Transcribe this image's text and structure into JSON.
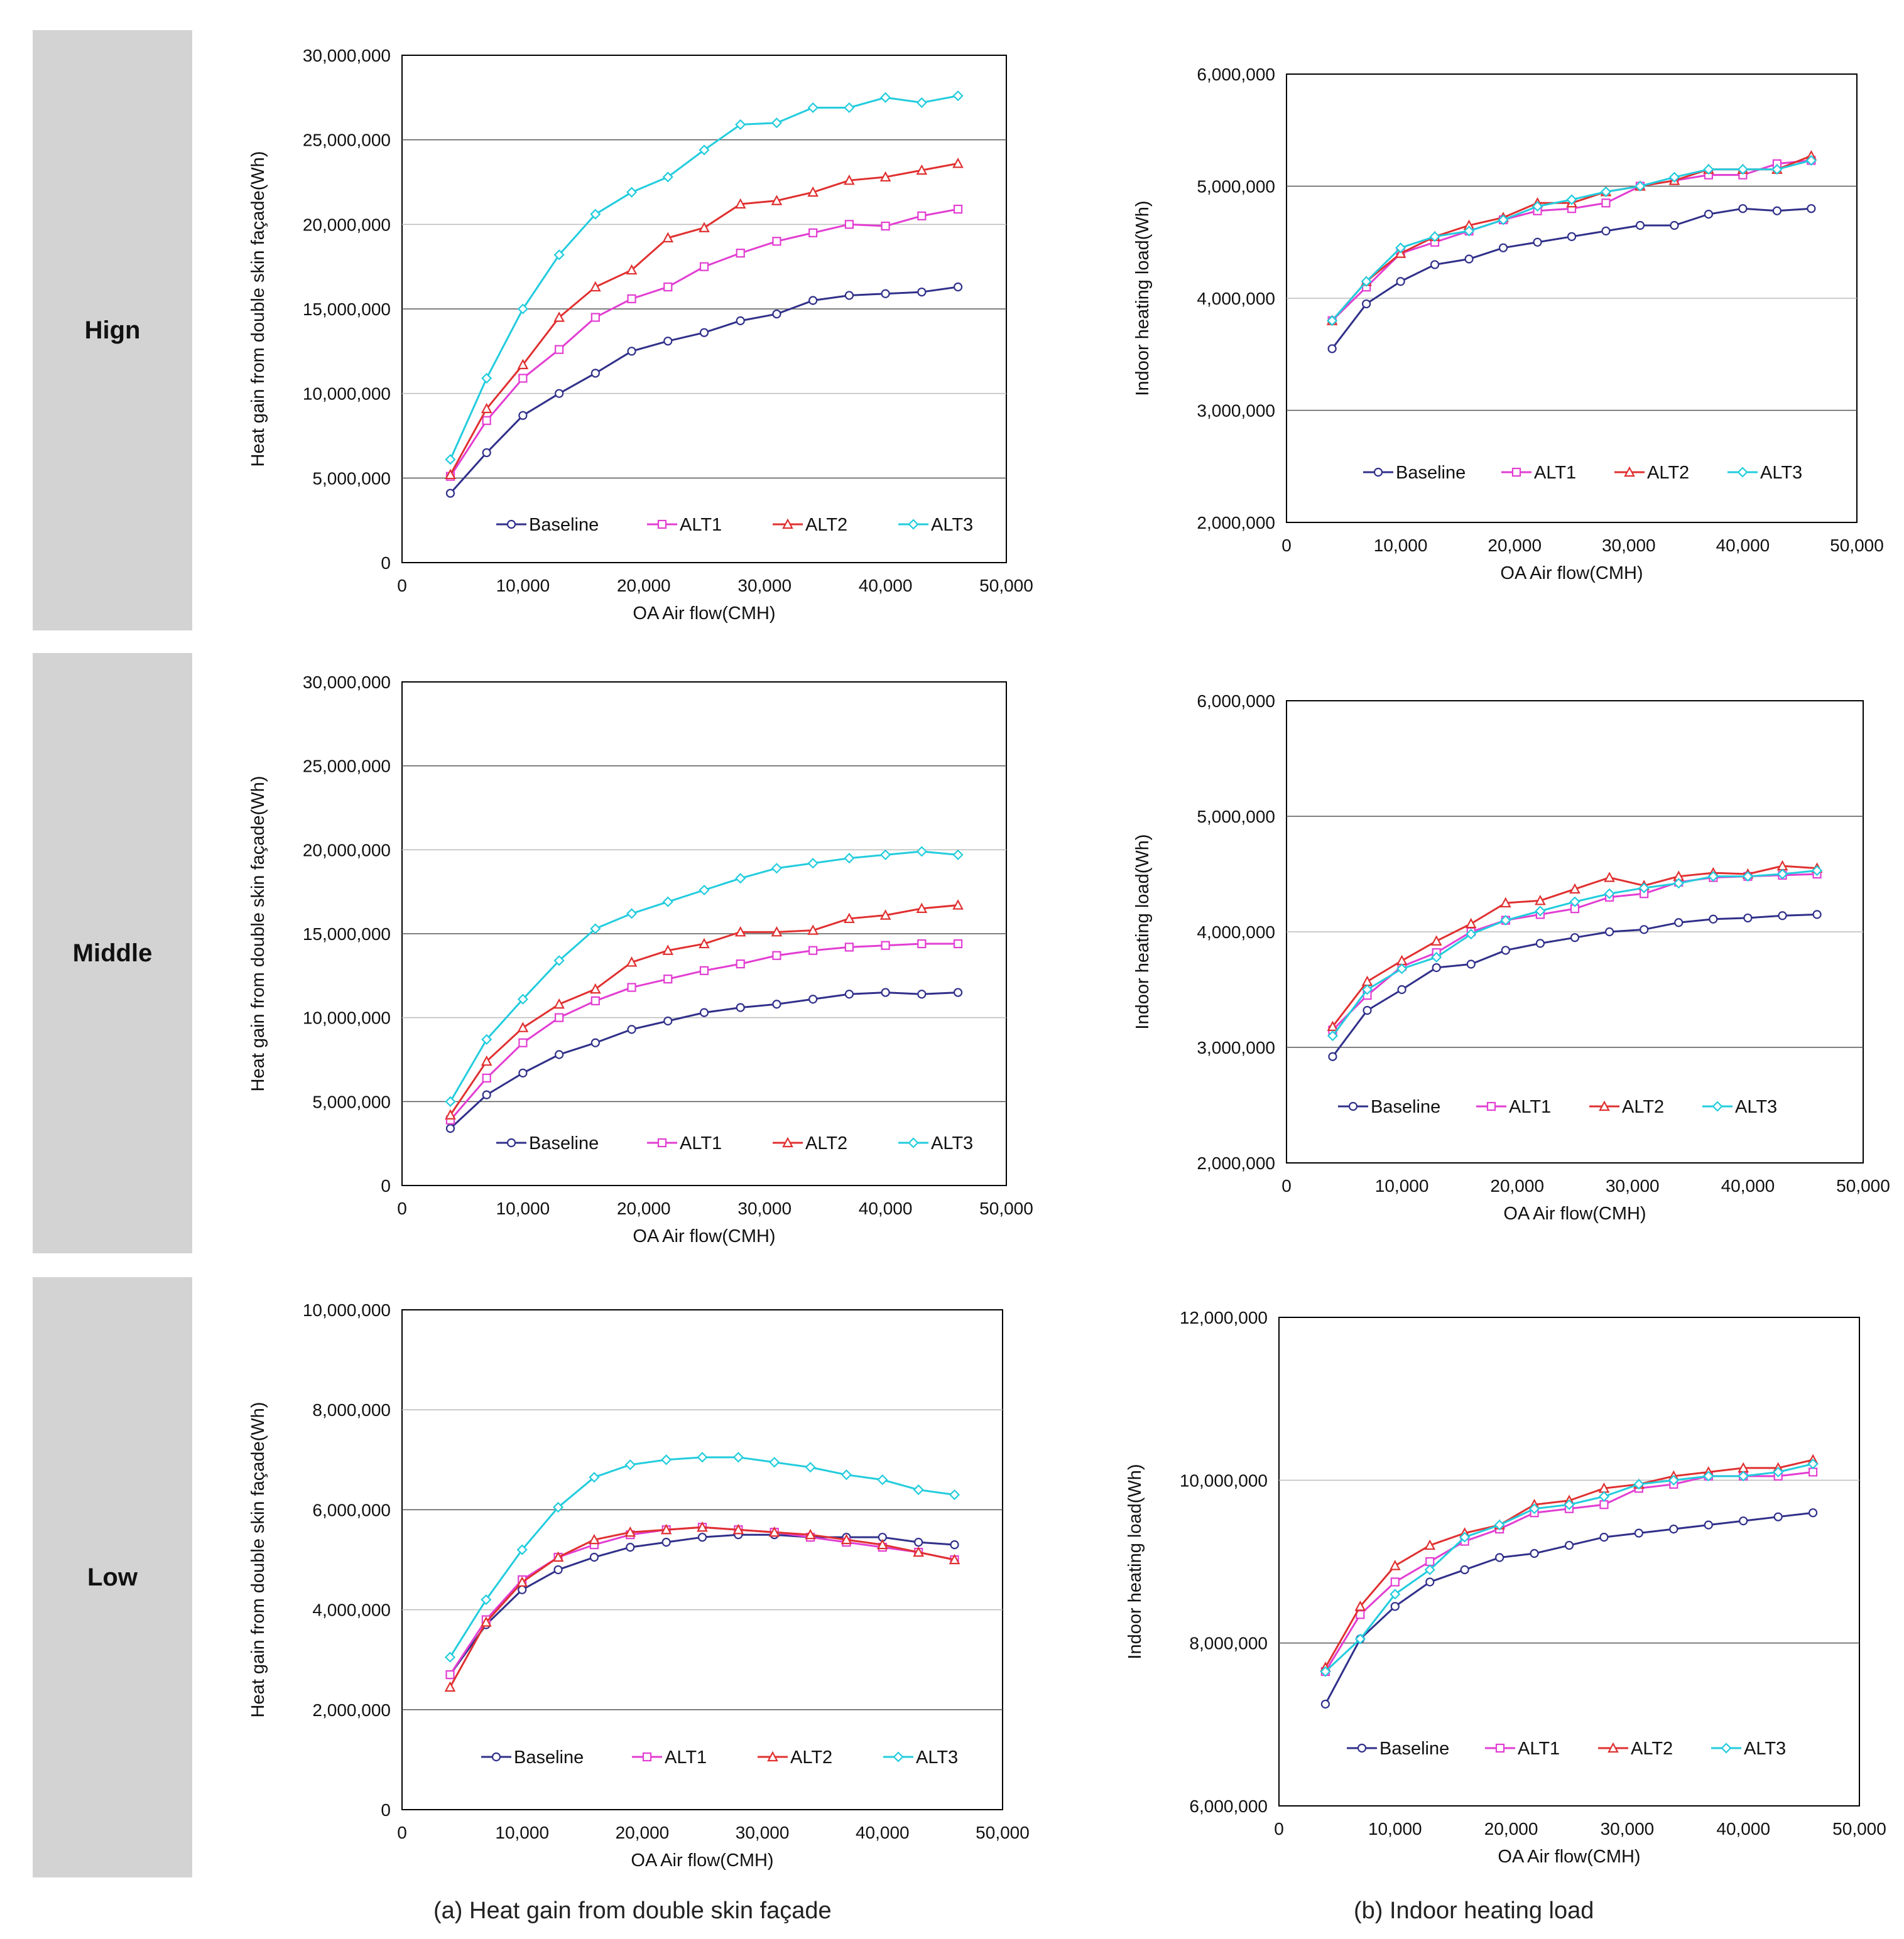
{
  "row_labels": [
    "Hign",
    "Middle",
    "Low"
  ],
  "captions": {
    "a": "(a) Heat gain from double skin façade",
    "b": "(b) Indoor heating load"
  },
  "colors": {
    "Baseline": "#30308a",
    "ALT1": "#e23ed2",
    "ALT2": "#e03030",
    "ALT3": "#22ccdd"
  },
  "x_values": [
    4000,
    7000,
    10000,
    13000,
    16000,
    19000,
    22000,
    25000,
    28000,
    31000,
    34000,
    37000,
    40000,
    43000,
    46000
  ],
  "chart_data": [
    {
      "type": "line",
      "id": "a-high",
      "ylabel": "Heat gain from double  skin façade(Wh)",
      "xlabel": "OA Air flow(CMH)",
      "ylim": [
        0,
        30000000
      ],
      "yticks": [
        "0",
        "5,000,000",
        "10,000,000",
        "15,000,000",
        "20,000,000",
        "25,000,000",
        "30,000,000"
      ],
      "ystep": 5000000,
      "xlim": [
        0,
        50000
      ],
      "xticks": [
        "0",
        "10,000",
        "20,000",
        "30,000",
        "40,000",
        "50,000"
      ],
      "series": [
        {
          "name": "Baseline",
          "values": [
            4100000,
            6500000,
            8700000,
            10000000,
            11200000,
            12500000,
            13100000,
            13600000,
            14300000,
            14700000,
            15500000,
            15800000,
            15900000,
            16000000,
            16300000
          ]
        },
        {
          "name": "ALT1",
          "values": [
            5100000,
            8400000,
            10900000,
            12600000,
            14500000,
            15600000,
            16300000,
            17500000,
            18300000,
            19000000,
            19500000,
            20000000,
            19900000,
            20500000,
            20900000
          ]
        },
        {
          "name": "ALT2",
          "values": [
            5200000,
            9100000,
            11700000,
            14500000,
            16300000,
            17300000,
            19200000,
            19800000,
            21200000,
            21400000,
            21900000,
            22600000,
            22800000,
            23200000,
            23600000
          ]
        },
        {
          "name": "ALT3",
          "values": [
            6100000,
            10900000,
            15000000,
            18200000,
            20600000,
            21900000,
            22800000,
            24400000,
            25900000,
            26000000,
            26900000,
            26900000,
            27500000,
            27200000,
            27600000
          ]
        }
      ]
    },
    {
      "type": "line",
      "id": "b-high",
      "ylabel": "Indoor heating load(Wh)",
      "xlabel": "OA Air flow(CMH)",
      "ylim": [
        2000000,
        6000000
      ],
      "yticks": [
        "2,000,000",
        "3,000,000",
        "4,000,000",
        "5,000,000",
        "6,000,000"
      ],
      "ystep": 1000000,
      "xlim": [
        0,
        50000
      ],
      "xticks": [
        "0",
        "10,000",
        "20,000",
        "30,000",
        "40,000",
        "50,000"
      ],
      "series": [
        {
          "name": "Baseline",
          "values": [
            3550000,
            3950000,
            4150000,
            4300000,
            4350000,
            4450000,
            4500000,
            4550000,
            4600000,
            4650000,
            4650000,
            4750000,
            4800000,
            4780000,
            4800000
          ]
        },
        {
          "name": "ALT1",
          "values": [
            3800000,
            4100000,
            4400000,
            4500000,
            4600000,
            4700000,
            4780000,
            4800000,
            4850000,
            5000000,
            5050000,
            5100000,
            5100000,
            5200000,
            5230000
          ]
        },
        {
          "name": "ALT2",
          "values": [
            3800000,
            4150000,
            4400000,
            4550000,
            4650000,
            4720000,
            4850000,
            4850000,
            4950000,
            5000000,
            5050000,
            5150000,
            5150000,
            5150000,
            5270000
          ]
        },
        {
          "name": "ALT3",
          "values": [
            3800000,
            4150000,
            4450000,
            4550000,
            4600000,
            4700000,
            4820000,
            4880000,
            4950000,
            5000000,
            5080000,
            5150000,
            5150000,
            5150000,
            5230000
          ]
        }
      ]
    },
    {
      "type": "line",
      "id": "a-middle",
      "ylabel": "Heat gain from double  skin façade(Wh)",
      "xlabel": "OA Air flow(CMH)",
      "ylim": [
        0,
        30000000
      ],
      "yticks": [
        "0",
        "5,000,000",
        "10,000,000",
        "15,000,000",
        "20,000,000",
        "25,000,000",
        "30,000,000"
      ],
      "ystep": 5000000,
      "xlim": [
        0,
        50000
      ],
      "xticks": [
        "0",
        "10,000",
        "20,000",
        "30,000",
        "40,000",
        "50,000"
      ],
      "series": [
        {
          "name": "Baseline",
          "values": [
            3400000,
            5400000,
            6700000,
            7800000,
            8500000,
            9300000,
            9800000,
            10300000,
            10600000,
            10800000,
            11100000,
            11400000,
            11500000,
            11400000,
            11500000
          ]
        },
        {
          "name": "ALT1",
          "values": [
            3900000,
            6400000,
            8500000,
            10000000,
            11000000,
            11800000,
            12300000,
            12800000,
            13200000,
            13700000,
            14000000,
            14200000,
            14300000,
            14400000,
            14400000
          ]
        },
        {
          "name": "ALT2",
          "values": [
            4200000,
            7400000,
            9400000,
            10800000,
            11700000,
            13300000,
            14000000,
            14400000,
            15100000,
            15100000,
            15200000,
            15900000,
            16100000,
            16500000,
            16700000
          ]
        },
        {
          "name": "ALT3",
          "values": [
            5000000,
            8700000,
            11100000,
            13400000,
            15300000,
            16200000,
            16900000,
            17600000,
            18300000,
            18900000,
            19200000,
            19500000,
            19700000,
            19900000,
            19700000
          ]
        }
      ]
    },
    {
      "type": "line",
      "id": "b-middle",
      "ylabel": "Indoor heating load(Wh)",
      "xlabel": "OA Air flow(CMH)",
      "ylim": [
        2000000,
        6000000
      ],
      "yticks": [
        "2,000,000",
        "3,000,000",
        "4,000,000",
        "5,000,000",
        "6,000,000"
      ],
      "ystep": 1000000,
      "xlim": [
        0,
        50000
      ],
      "xticks": [
        "0",
        "10,000",
        "20,000",
        "30,000",
        "40,000",
        "50,000"
      ],
      "series": [
        {
          "name": "Baseline",
          "values": [
            2920000,
            3320000,
            3500000,
            3690000,
            3720000,
            3840000,
            3900000,
            3950000,
            4000000,
            4020000,
            4080000,
            4110000,
            4120000,
            4140000,
            4150000
          ]
        },
        {
          "name": "ALT1",
          "values": [
            3150000,
            3450000,
            3700000,
            3820000,
            4000000,
            4100000,
            4150000,
            4200000,
            4300000,
            4330000,
            4430000,
            4470000,
            4480000,
            4490000,
            4500000
          ]
        },
        {
          "name": "ALT2",
          "values": [
            3180000,
            3570000,
            3750000,
            3920000,
            4070000,
            4250000,
            4270000,
            4370000,
            4470000,
            4400000,
            4480000,
            4510000,
            4500000,
            4570000,
            4550000
          ]
        },
        {
          "name": "ALT3",
          "values": [
            3100000,
            3500000,
            3680000,
            3780000,
            3980000,
            4100000,
            4180000,
            4260000,
            4330000,
            4380000,
            4420000,
            4480000,
            4480000,
            4500000,
            4530000
          ]
        }
      ]
    },
    {
      "type": "line",
      "id": "a-low",
      "ylabel": "Heat gain from double  skin façade(Wh)",
      "xlabel": "OA Air flow(CMH)",
      "ylim": [
        0,
        10000000
      ],
      "yticks": [
        "0",
        "2,000,000",
        "4,000,000",
        "6,000,000",
        "8,000,000",
        "10,000,000"
      ],
      "ystep": 2000000,
      "xlim": [
        0,
        50000
      ],
      "xticks": [
        "0",
        "10,000",
        "20,000",
        "30,000",
        "40,000",
        "50,000"
      ],
      "series": [
        {
          "name": "Baseline",
          "values": [
            2700000,
            3700000,
            4400000,
            4800000,
            5050000,
            5250000,
            5350000,
            5450000,
            5500000,
            5500000,
            5450000,
            5450000,
            5450000,
            5350000,
            5300000
          ]
        },
        {
          "name": "ALT1",
          "values": [
            2700000,
            3800000,
            4600000,
            5050000,
            5300000,
            5500000,
            5600000,
            5650000,
            5600000,
            5550000,
            5450000,
            5350000,
            5250000,
            5150000,
            5000000
          ]
        },
        {
          "name": "ALT2",
          "values": [
            2450000,
            3750000,
            4550000,
            5050000,
            5400000,
            5550000,
            5600000,
            5650000,
            5600000,
            5550000,
            5500000,
            5400000,
            5300000,
            5150000,
            5000000
          ]
        },
        {
          "name": "ALT3",
          "values": [
            3050000,
            4200000,
            5200000,
            6050000,
            6650000,
            6900000,
            7000000,
            7050000,
            7050000,
            6950000,
            6850000,
            6700000,
            6600000,
            6400000,
            6300000
          ]
        }
      ]
    },
    {
      "type": "line",
      "id": "b-low",
      "ylabel": "Indoor heating  load(Wh)",
      "xlabel": "OA Air flow(CMH)",
      "ylim": [
        6000000,
        12000000
      ],
      "yticks": [
        "6,000,000",
        "8,000,000",
        "10,000,000",
        "12,000,000"
      ],
      "ystep": 2000000,
      "xlim": [
        0,
        50000
      ],
      "xticks": [
        "0",
        "10,000",
        "20,000",
        "30,000",
        "40,000",
        "50,000"
      ],
      "series": [
        {
          "name": "Baseline",
          "values": [
            7250000,
            8050000,
            8450000,
            8750000,
            8900000,
            9050000,
            9100000,
            9200000,
            9300000,
            9350000,
            9400000,
            9450000,
            9500000,
            9550000,
            9600000
          ]
        },
        {
          "name": "ALT1",
          "values": [
            7650000,
            8350000,
            8750000,
            9000000,
            9250000,
            9400000,
            9600000,
            9650000,
            9700000,
            9900000,
            9950000,
            10050000,
            10050000,
            10050000,
            10100000
          ]
        },
        {
          "name": "ALT2",
          "values": [
            7700000,
            8450000,
            8950000,
            9200000,
            9350000,
            9450000,
            9700000,
            9750000,
            9900000,
            9950000,
            10050000,
            10100000,
            10150000,
            10150000,
            10250000
          ]
        },
        {
          "name": "ALT3",
          "values": [
            7650000,
            8050000,
            8600000,
            8900000,
            9300000,
            9450000,
            9650000,
            9700000,
            9800000,
            9950000,
            10000000,
            10050000,
            10050000,
            10100000,
            10200000
          ]
        }
      ]
    }
  ]
}
